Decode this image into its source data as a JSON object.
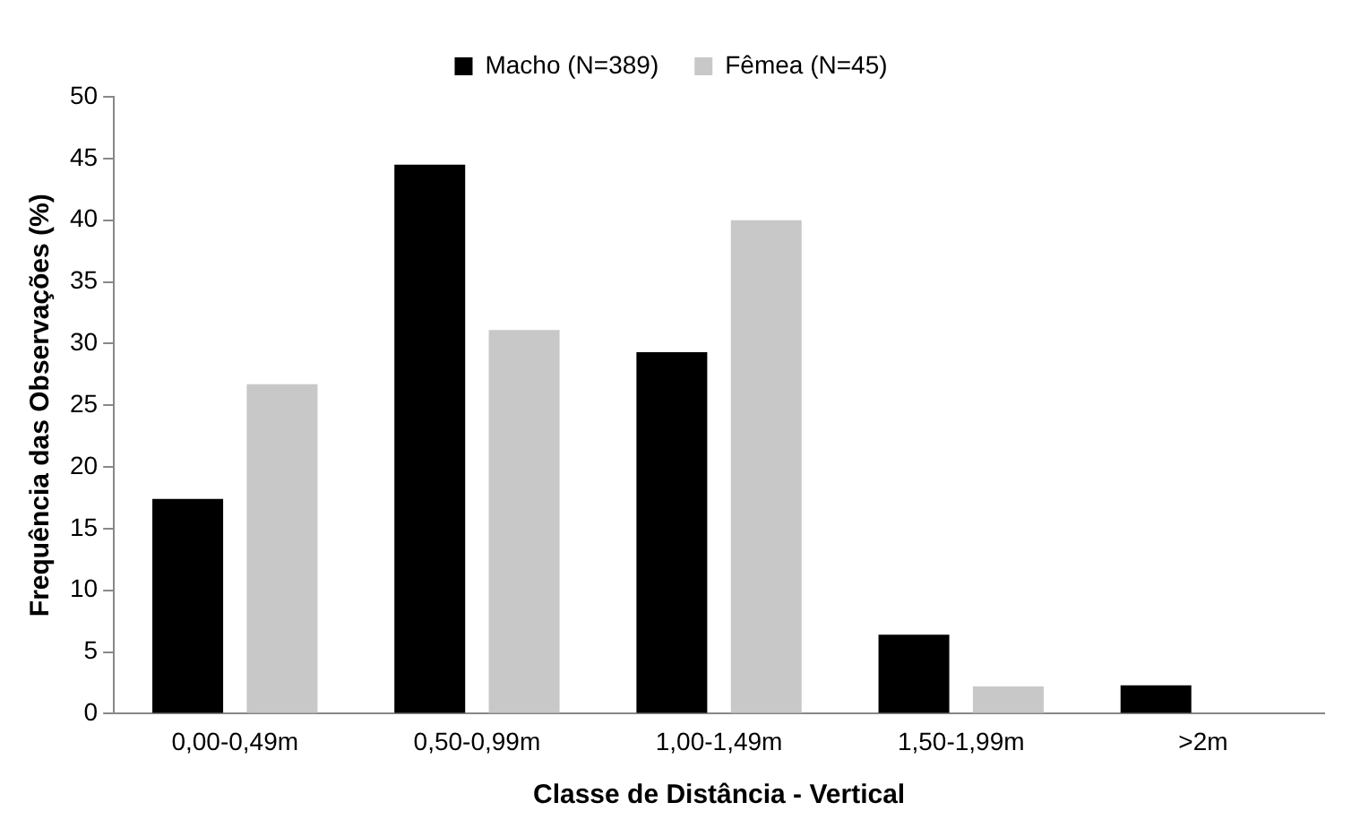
{
  "chart_data": {
    "type": "bar",
    "xlabel": "Classe de Distância - Vertical",
    "ylabel": "Frequência das Observações (%)",
    "categories": [
      "0,00-0,49m",
      "0,50-0,99m",
      "1,00-1,49m",
      "1,50-1,99m",
      ">2m"
    ],
    "series": [
      {
        "name": "Macho (N=389)",
        "color": "#000000",
        "values": [
          17.4,
          44.5,
          29.3,
          6.4,
          2.3
        ]
      },
      {
        "name": "Fêmea (N=45)",
        "color": "#c8c8c8",
        "values": [
          26.7,
          31.1,
          40.0,
          2.2,
          0
        ]
      }
    ],
    "ylim": [
      0,
      50
    ],
    "yticks": [
      0,
      5,
      10,
      15,
      20,
      25,
      30,
      35,
      40,
      45,
      50
    ],
    "grid": false,
    "legend": "top"
  }
}
